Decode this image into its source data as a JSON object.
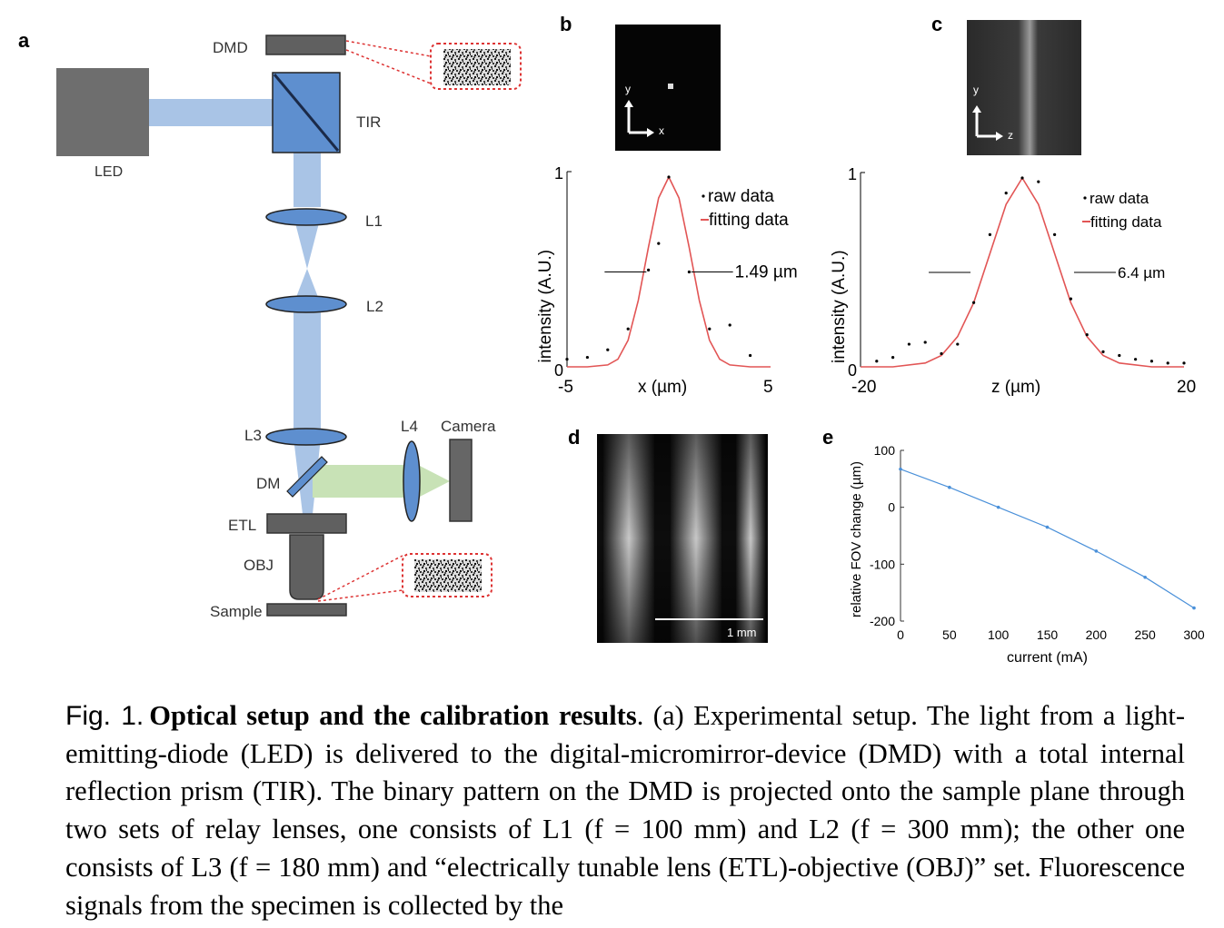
{
  "panels": {
    "a": "a",
    "b": "b",
    "c": "c",
    "d": "d",
    "e": "e"
  },
  "setup": {
    "dmd": "DMD",
    "led": "LED",
    "tir": "TIR",
    "l1": "L1",
    "l2": "L2",
    "l3": "L3",
    "l4": "L4",
    "camera": "Camera",
    "dm": "DM",
    "etl": "ETL",
    "obj": "OBJ",
    "sample": "Sample"
  },
  "insets": {
    "b_axes": {
      "y": "y",
      "x": "x"
    },
    "c_axes": {
      "y": "y",
      "z": "z"
    }
  },
  "chart_data": [
    {
      "id": "b",
      "type": "line",
      "xlabel": "x (µm)",
      "ylabel": "intensity (A.U.)",
      "xlim": [
        -5,
        5
      ],
      "ylim": [
        0,
        1
      ],
      "xticks": [
        "-5",
        "5"
      ],
      "yticks": [
        "0",
        "1"
      ],
      "series": [
        {
          "name": "raw data",
          "style": "points",
          "x": [
            -5.0,
            -4.0,
            -3.0,
            -2.0,
            -1.0,
            -0.5,
            0.0,
            1.0,
            2.0,
            3.0,
            4.0
          ],
          "y": [
            0.04,
            0.05,
            0.09,
            0.2,
            0.51,
            0.65,
            1.0,
            0.5,
            0.2,
            0.22,
            0.06
          ]
        },
        {
          "name": "fitting data",
          "style": "line",
          "color": "#e25555",
          "x": [
            -5,
            -4,
            -3,
            -2.5,
            -2,
            -1.5,
            -1,
            -0.5,
            0,
            0.5,
            1,
            1.5,
            2,
            2.5,
            3,
            4,
            5
          ],
          "y": [
            0.0,
            0.0,
            0.01,
            0.04,
            0.14,
            0.35,
            0.63,
            0.89,
            1.0,
            0.89,
            0.63,
            0.35,
            0.14,
            0.04,
            0.01,
            0.0,
            0.0
          ]
        }
      ],
      "annotation": "1.49 µm"
    },
    {
      "id": "c",
      "type": "line",
      "xlabel": "z (µm)",
      "ylabel": "intensity (A.U.)",
      "xlim": [
        -20,
        20
      ],
      "ylim": [
        0,
        1
      ],
      "xticks": [
        "-20",
        "20"
      ],
      "yticks": [
        "0",
        "1"
      ],
      "series": [
        {
          "name": "raw data",
          "style": "points",
          "x": [
            -18,
            -16,
            -14,
            -12,
            -10,
            -8,
            -6,
            -4,
            -2,
            0,
            2,
            4,
            6,
            8,
            10,
            12,
            14,
            16,
            18,
            20
          ],
          "y": [
            0.03,
            0.05,
            0.12,
            0.13,
            0.07,
            0.12,
            0.34,
            0.7,
            0.92,
            1.0,
            0.98,
            0.7,
            0.36,
            0.17,
            0.08,
            0.06,
            0.04,
            0.03,
            0.02,
            0.02
          ]
        },
        {
          "name": "fitting data",
          "style": "line",
          "color": "#e25555",
          "x": [
            -20,
            -16,
            -12,
            -10,
            -8,
            -6,
            -4,
            -2,
            0,
            2,
            4,
            6,
            8,
            10,
            12,
            16,
            20
          ],
          "y": [
            0.0,
            0.0,
            0.02,
            0.06,
            0.16,
            0.34,
            0.6,
            0.86,
            1.0,
            0.86,
            0.6,
            0.34,
            0.16,
            0.06,
            0.02,
            0.0,
            0.0
          ]
        }
      ],
      "annotation": "6.4 µm"
    },
    {
      "id": "e",
      "type": "line",
      "xlabel": "current (mA)",
      "ylabel": "relative FOV change (µm)",
      "xlim": [
        0,
        300
      ],
      "ylim": [
        -200,
        100
      ],
      "xticks": [
        "0",
        "50",
        "100",
        "150",
        "200",
        "250",
        "300"
      ],
      "yticks": [
        "100",
        "0",
        "-100",
        "-200"
      ],
      "series": [
        {
          "style": "line-points",
          "color": "#4a90d9",
          "x": [
            0,
            50,
            100,
            150,
            200,
            250,
            300
          ],
          "y": [
            67,
            35,
            0,
            -35,
            -77,
            -123,
            -177
          ]
        }
      ]
    }
  ],
  "scalebar": {
    "label": "1 mm"
  },
  "caption": {
    "fig_no": "Fig. 1.",
    "title": "Optical setup and the calibration results",
    "body": ". (a) Experimental setup. The light from a light-emitting-diode (LED) is delivered to the digital-micromirror-device (DMD) with a total internal reflection prism (TIR). The binary pattern on the DMD is projected onto the sample plane through two sets of relay lenses, one consists of L1 (f = 100 mm) and L2 (f = 300 mm); the other one consists of L3 (f = 180 mm) and “electrically tunable lens (ETL)-objective (OBJ)” set.  Fluorescence signals from the specimen is collected by the"
  }
}
